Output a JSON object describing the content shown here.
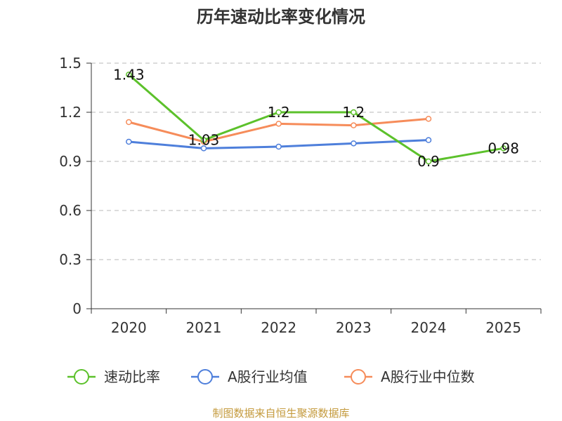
{
  "chart_data": {
    "type": "line",
    "title": "历年速动比率变化情况",
    "categories": [
      "2020",
      "2021",
      "2022",
      "2023",
      "2024",
      "2025"
    ],
    "ylim": [
      0,
      1.5
    ],
    "yticks": [
      "0",
      "0.3",
      "0.6",
      "0.9",
      "1.2",
      "1.5"
    ],
    "ytick_values": [
      0,
      0.3,
      0.6,
      0.9,
      1.2,
      1.5
    ],
    "grid": true,
    "legend_position": "bottom-center",
    "series": [
      {
        "name": "速动比率",
        "color": "#5cc12b",
        "values": [
          1.43,
          1.03,
          1.2,
          1.2,
          0.9,
          0.98
        ],
        "labels": [
          "1.43",
          "1.03",
          "1.2",
          "1.2",
          "0.9",
          "0.98"
        ]
      },
      {
        "name": "A股行业均值",
        "color": "#4e7fdb",
        "values": [
          1.02,
          0.98,
          0.99,
          1.01,
          1.03,
          null
        ]
      },
      {
        "name": "A股行业中位数",
        "color": "#f68c5a",
        "values": [
          1.14,
          1.02,
          1.13,
          1.12,
          1.16,
          null
        ]
      }
    ]
  },
  "footer": {
    "source": "制图数据来自恒生聚源数据库"
  }
}
